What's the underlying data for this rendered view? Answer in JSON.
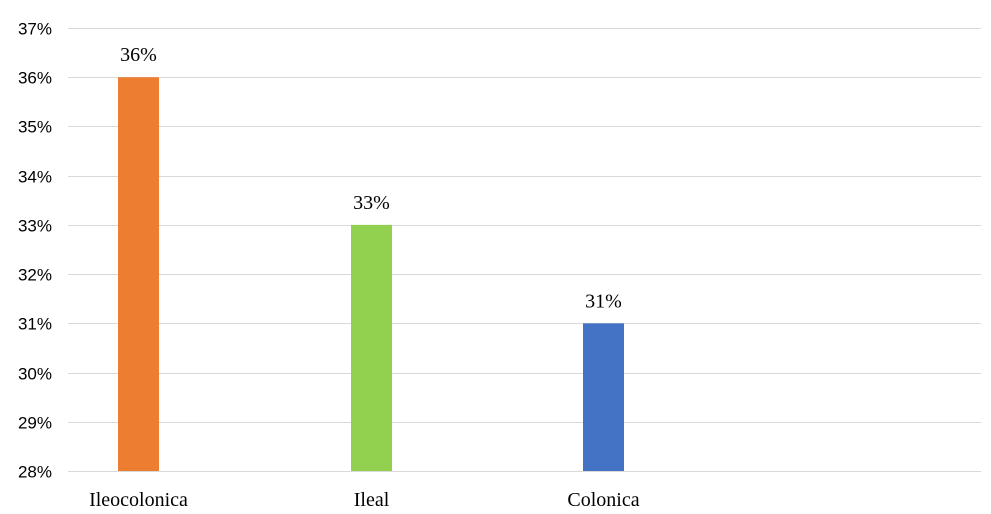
{
  "chart_data": {
    "type": "bar",
    "categories": [
      "Ileocolonica",
      "Ileal",
      "Colonica"
    ],
    "values": [
      36,
      33,
      31
    ],
    "value_labels": [
      "36%",
      "33%",
      "31%"
    ],
    "colors": [
      "#ed7d31",
      "#92d050",
      "#4472c4"
    ],
    "ylim": [
      28,
      37
    ],
    "yticks": [
      28,
      29,
      30,
      31,
      32,
      33,
      34,
      35,
      36,
      37
    ],
    "ytick_labels": [
      "28%",
      "29%",
      "30%",
      "31%",
      "32%",
      "33%",
      "34%",
      "35%",
      "36%",
      "37%"
    ],
    "grid": true,
    "legend": "none"
  }
}
